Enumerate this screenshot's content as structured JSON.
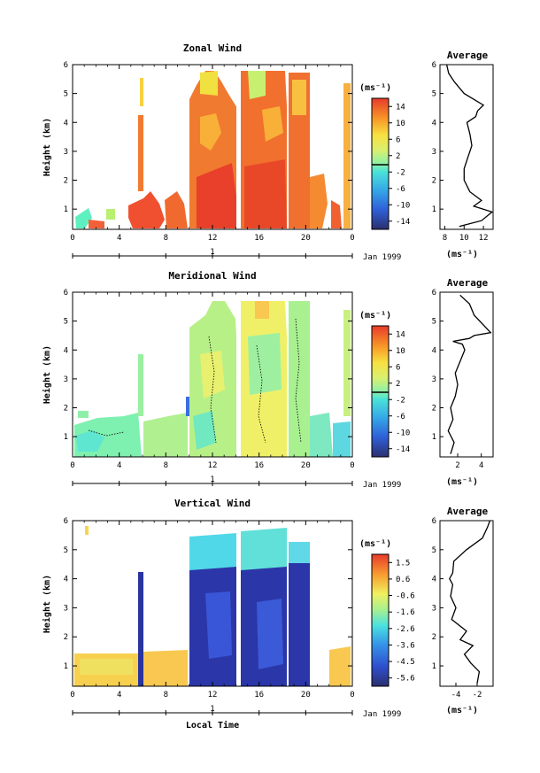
{
  "chart_data": [
    {
      "type": "heatmap",
      "title": "Zonal Wind",
      "ylabel": "Height (km)",
      "x_ticks": [
        "0",
        "4",
        "8",
        "12",
        "16",
        "20",
        "0"
      ],
      "y_ticks": [
        "1",
        "2",
        "3",
        "4",
        "5",
        "6"
      ],
      "xlim": [
        0,
        24
      ],
      "ylim": [
        0.3,
        6
      ],
      "date_marker": "1",
      "date_label": "Jan 1999",
      "colorbar": {
        "unit": "(ms⁻¹)",
        "ticks": [
          "14",
          "10",
          "6",
          "2",
          "-2",
          "-6",
          "-10",
          "-14"
        ],
        "range": [
          -16,
          16
        ]
      },
      "average": {
        "title": "Average",
        "xlabel": "(ms⁻¹)",
        "x_ticks": [
          "8",
          "10",
          "12"
        ],
        "y_ticks": [
          "1",
          "2",
          "3",
          "4",
          "5",
          "6"
        ],
        "xlim": [
          7.5,
          13
        ],
        "profile_x": [
          9.5,
          11.8,
          12.9,
          11.0,
          11.8,
          10.6,
          10.0,
          10.0,
          10.4,
          10.8,
          10.6,
          10.3,
          11.2,
          11.4,
          12.0,
          11.0,
          10.0,
          9.5,
          9.0,
          8.4,
          8.2
        ],
        "profile_y": [
          0.4,
          0.6,
          0.9,
          1.1,
          1.3,
          1.6,
          2.0,
          2.4,
          2.8,
          3.2,
          3.6,
          4.0,
          4.2,
          4.4,
          4.6,
          4.8,
          5.0,
          5.2,
          5.4,
          5.7,
          6.0
        ]
      }
    },
    {
      "type": "heatmap",
      "title": "Meridional Wind",
      "ylabel": "Height (km)",
      "x_ticks": [
        "0",
        "4",
        "8",
        "12",
        "16",
        "20",
        "0"
      ],
      "y_ticks": [
        "1",
        "2",
        "3",
        "4",
        "5",
        "6"
      ],
      "xlim": [
        0,
        24
      ],
      "ylim": [
        0.3,
        6
      ],
      "date_marker": "1",
      "date_label": "Jan 1999",
      "colorbar": {
        "unit": "(ms⁻¹)",
        "ticks": [
          "14",
          "10",
          "6",
          "2",
          "-2",
          "-6",
          "-10",
          "-14"
        ],
        "range": [
          -16,
          16
        ]
      },
      "average": {
        "title": "Average",
        "xlabel": "(ms⁻¹)",
        "x_ticks": [
          "2",
          "4"
        ],
        "y_ticks": [
          "1",
          "2",
          "3",
          "4",
          "5",
          "6"
        ],
        "xlim": [
          0.5,
          5
        ],
        "profile_x": [
          1.4,
          1.7,
          1.2,
          1.6,
          1.4,
          1.8,
          2.0,
          1.8,
          2.2,
          2.6,
          2.4,
          1.6,
          3.0,
          3.4,
          4.8,
          3.4,
          3.0,
          2.2
        ],
        "profile_y": [
          0.4,
          0.8,
          1.2,
          1.6,
          2.0,
          2.4,
          2.8,
          3.2,
          3.6,
          4.0,
          4.2,
          4.3,
          4.4,
          4.5,
          4.6,
          5.2,
          5.6,
          5.9
        ]
      }
    },
    {
      "type": "heatmap",
      "title": "Vertical Wind",
      "ylabel": "Height (km)",
      "xlabel": "Local Time",
      "x_ticks": [
        "0",
        "4",
        "8",
        "12",
        "16",
        "20",
        "0"
      ],
      "y_ticks": [
        "1",
        "2",
        "3",
        "4",
        "5",
        "6"
      ],
      "xlim": [
        0,
        24
      ],
      "ylim": [
        0.3,
        6
      ],
      "date_marker": "1",
      "date_label": "Jan 1999",
      "colorbar": {
        "unit": "(ms⁻¹)",
        "ticks": [
          "1.5",
          "0.6",
          "-0.6",
          "-1.6",
          "-2.6",
          "-3.6",
          "-4.5",
          "-5.6"
        ],
        "range": [
          -6,
          2
        ]
      },
      "average": {
        "title": "Average",
        "xlabel": "(ms⁻¹)",
        "x_ticks": [
          "-4",
          "-2"
        ],
        "y_ticks": [
          "1",
          "2",
          "3",
          "4",
          "5",
          "6"
        ],
        "xlim": [
          -5.5,
          -0.5
        ],
        "profile_x": [
          -2.0,
          -1.8,
          -2.6,
          -3.2,
          -2.4,
          -3.6,
          -3.0,
          -4.4,
          -4.0,
          -4.5,
          -4.3,
          -4.6,
          -4.3,
          -4.2,
          -3.0,
          -1.5,
          -1.0,
          -0.8
        ],
        "profile_y": [
          0.4,
          0.8,
          1.1,
          1.4,
          1.7,
          1.9,
          2.2,
          2.6,
          3.0,
          3.4,
          3.8,
          4.0,
          4.2,
          4.6,
          5.0,
          5.4,
          5.8,
          6.0
        ]
      }
    }
  ]
}
